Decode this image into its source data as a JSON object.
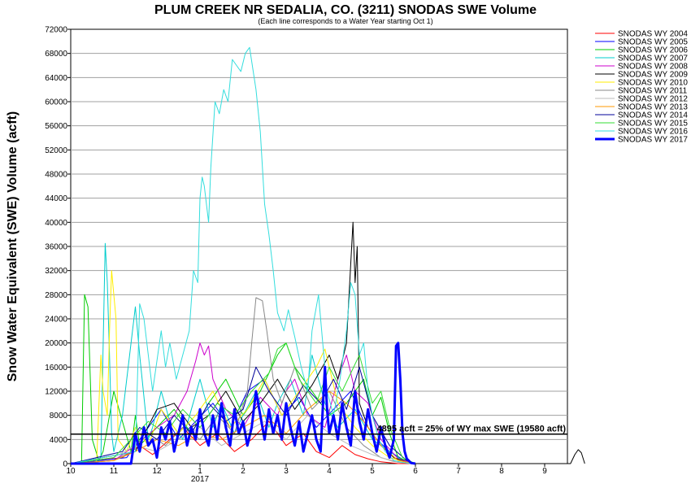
{
  "chart_data": {
    "type": "line",
    "title": "PLUM CREEK NR SEDALIA, CO. (3211) SNODAS SWE Volume",
    "subtitle": "(Each line corresponds to a Water Year starting Oct 1)",
    "ylabel": "Snow Water Equivalent (SWE) Volume (acft)",
    "xlabel": "",
    "ylim": [
      0,
      72000
    ],
    "yticks": [
      0,
      4000,
      8000,
      12000,
      16000,
      20000,
      24000,
      28000,
      32000,
      36000,
      40000,
      44000,
      48000,
      52000,
      56000,
      60000,
      64000,
      68000,
      72000
    ],
    "ytick_labels": [
      "0",
      "4000",
      "8000",
      "12000",
      "16000",
      "20000",
      "24000",
      "28000",
      "32000",
      "36000",
      "40000",
      "44000",
      "48000",
      "52000",
      "56000",
      "60000",
      "64000",
      "68000",
      "72000"
    ],
    "xlim": [
      10,
      9.93
    ],
    "xticks": [
      {
        "month": 10,
        "label": "10"
      },
      {
        "month": 11,
        "label": "11"
      },
      {
        "month": 12,
        "label": "12"
      },
      {
        "month": 13,
        "label": "1"
      },
      {
        "month": 14,
        "label": "2"
      },
      {
        "month": 15,
        "label": "3"
      },
      {
        "month": 16,
        "label": "4"
      },
      {
        "month": 17,
        "label": "5"
      },
      {
        "month": 18,
        "label": "6"
      },
      {
        "month": 19,
        "label": "7"
      },
      {
        "month": 20,
        "label": "8"
      },
      {
        "month": 21,
        "label": "9"
      }
    ],
    "year_label": "2017",
    "grid": "horizontal",
    "legend_placement": "right",
    "reference_line": {
      "value": 4895,
      "label": "4895 acft = 25% of WY max SWE (19580 acft)"
    },
    "series": [
      {
        "name": "SNODAS WY 2004",
        "color": "#ff0000",
        "width": 1,
        "x": [
          10.0,
          11.2,
          11.6,
          11.9,
          12.3,
          12.6,
          13.0,
          13.4,
          13.8,
          14.2,
          14.6,
          15.0,
          15.4,
          15.7,
          16.0,
          16.3,
          16.6,
          16.9,
          17.2,
          17.6,
          18.0
        ],
        "y": [
          0,
          1000,
          3000,
          1500,
          4000,
          6000,
          3000,
          5000,
          2000,
          4000,
          7000,
          3000,
          5000,
          2000,
          1000,
          3000,
          1500,
          800,
          300,
          0,
          0
        ]
      },
      {
        "name": "SNODAS WY 2005",
        "color": "#0000ff",
        "width": 1,
        "x": [
          10.0,
          11.3,
          11.7,
          12.1,
          12.5,
          12.9,
          13.3,
          13.7,
          14.1,
          14.5,
          14.9,
          15.3,
          15.7,
          16.1,
          16.5,
          16.8,
          17.1,
          17.4,
          17.8,
          18.0
        ],
        "y": [
          0,
          1000,
          5000,
          9000,
          4000,
          7000,
          10000,
          6000,
          12000,
          14000,
          8000,
          11000,
          6000,
          9000,
          12000,
          7000,
          4000,
          2000,
          300,
          0
        ]
      },
      {
        "name": "SNODAS WY 2006",
        "color": "#00cc00",
        "width": 1,
        "x": [
          10.0,
          10.25,
          10.32,
          10.4,
          10.5,
          10.65,
          10.75,
          11.0,
          11.4,
          11.5,
          11.6,
          12.0,
          12.4,
          12.8,
          13.2,
          13.6,
          14.0,
          14.4,
          14.8,
          15.0,
          15.2,
          15.6,
          16.0,
          16.4,
          16.8,
          17.0,
          17.2,
          17.4,
          17.6,
          18.0
        ],
        "y": [
          0,
          0,
          28000,
          26000,
          4000,
          500,
          2000,
          12000,
          2000,
          8000,
          3000,
          6000,
          9000,
          5000,
          10000,
          14000,
          8000,
          12000,
          18000,
          20000,
          16000,
          12000,
          8000,
          10000,
          14000,
          8000,
          11000,
          5000,
          1000,
          0
        ]
      },
      {
        "name": "SNODAS WY 2007",
        "color": "#00cccc",
        "width": 1,
        "x": [
          10.0,
          10.5,
          10.7,
          10.8,
          10.85,
          10.9,
          10.95,
          11.0,
          11.2,
          11.5,
          11.6,
          11.8,
          11.9,
          12.1,
          12.3,
          12.6,
          12.8,
          13.0,
          13.3,
          13.5,
          13.8,
          14.0,
          14.3,
          14.6,
          14.8,
          15.1,
          15.4,
          15.6,
          15.9,
          16.2,
          16.6,
          17.0,
          17.4,
          17.7,
          18.0
        ],
        "y": [
          0,
          0,
          1000,
          36500,
          30000,
          18000,
          5000,
          2000,
          8000,
          26000,
          18000,
          4000,
          6000,
          12000,
          7000,
          4000,
          9000,
          14000,
          6000,
          10000,
          5000,
          8000,
          12000,
          6000,
          10000,
          14000,
          8000,
          18000,
          10000,
          6000,
          9000,
          4000,
          2000,
          500,
          0
        ]
      },
      {
        "name": "SNODAS WY 2008",
        "color": "#cc00cc",
        "width": 1,
        "x": [
          10.0,
          11.0,
          11.5,
          12.0,
          12.4,
          12.7,
          12.9,
          13.0,
          13.1,
          13.2,
          13.3,
          13.6,
          14.0,
          14.4,
          14.8,
          15.0,
          15.2,
          15.5,
          15.9,
          16.2,
          16.4,
          16.6,
          16.9,
          17.2,
          17.6,
          18.0
        ],
        "y": [
          0,
          500,
          3000,
          6000,
          8000,
          12000,
          17000,
          20000,
          18000,
          19500,
          14000,
          9000,
          6000,
          11000,
          8000,
          12000,
          14000,
          8000,
          6000,
          14000,
          18000,
          12000,
          10000,
          4000,
          800,
          0
        ]
      },
      {
        "name": "SNODAS WY 2009",
        "color": "#000000",
        "width": 1,
        "x": [
          10.0,
          11.5,
          12.0,
          12.4,
          12.8,
          13.2,
          13.6,
          14.0,
          14.4,
          14.8,
          15.2,
          15.6,
          16.0,
          16.2,
          16.4,
          16.55,
          16.6,
          16.65,
          16.7,
          16.9,
          17.2,
          17.5,
          17.8,
          18.0,
          21.6,
          21.7,
          21.78,
          21.85,
          21.93
        ],
        "y": [
          0,
          2000,
          9000,
          10000,
          6000,
          8000,
          12000,
          7000,
          10000,
          14000,
          9000,
          13000,
          18000,
          14000,
          20000,
          40000,
          30000,
          36000,
          10000,
          6000,
          3000,
          1000,
          200,
          0,
          0,
          1500,
          2300,
          1800,
          0
        ]
      },
      {
        "name": "SNODAS WY 2010",
        "color": "#ffee00",
        "width": 1,
        "x": [
          10.0,
          10.6,
          10.7,
          10.75,
          10.85,
          10.9,
          10.95,
          11.05,
          11.1,
          11.3,
          11.5,
          11.8,
          12.1,
          12.5,
          12.9,
          13.3,
          13.7,
          14.1,
          14.5,
          14.9,
          15.3,
          15.7,
          15.9,
          16.2,
          16.6,
          17.0,
          17.4,
          17.8,
          18.0
        ],
        "y": [
          0,
          0,
          18000,
          12000,
          8000,
          22000,
          32000,
          24000,
          4000,
          2000,
          6000,
          3000,
          9000,
          5000,
          8000,
          12000,
          6000,
          9000,
          14000,
          8000,
          12000,
          16000,
          19000,
          10000,
          6000,
          3000,
          1000,
          200,
          0
        ]
      },
      {
        "name": "SNODAS WY 2011",
        "color": "#888888",
        "width": 1,
        "x": [
          10.0,
          11.0,
          11.4,
          11.8,
          12.2,
          12.6,
          13.0,
          13.4,
          13.8,
          14.1,
          14.2,
          14.3,
          14.45,
          14.55,
          14.7,
          14.9,
          15.2,
          15.6,
          16.0,
          16.4,
          16.8,
          17.2,
          17.6,
          18.0
        ],
        "y": [
          0,
          500,
          2000,
          5000,
          3000,
          6000,
          4000,
          8000,
          5000,
          12000,
          20000,
          27500,
          27000,
          22000,
          14000,
          10000,
          16000,
          9000,
          12000,
          6000,
          3000,
          1000,
          200,
          0
        ]
      },
      {
        "name": "SNODAS WY 2012",
        "color": "#bbbbbb",
        "width": 1,
        "x": [
          10.0,
          11.0,
          11.5,
          12.0,
          12.5,
          13.0,
          13.5,
          14.0,
          14.5,
          15.0,
          15.5,
          16.0,
          16.5,
          17.0,
          17.5,
          18.0
        ],
        "y": [
          0,
          1000,
          3000,
          2000,
          4000,
          6000,
          3000,
          5000,
          7000,
          4000,
          8000,
          5000,
          3000,
          1500,
          300,
          0
        ]
      },
      {
        "name": "SNODAS WY 2013",
        "color": "#ff9900",
        "width": 1,
        "x": [
          10.0,
          11.0,
          11.5,
          12.0,
          12.5,
          13.0,
          13.5,
          14.0,
          14.5,
          15.0,
          15.5,
          16.0,
          16.4,
          16.8,
          17.2,
          17.6,
          18.0
        ],
        "y": [
          0,
          500,
          2000,
          4000,
          3000,
          5000,
          4000,
          6000,
          8000,
          5000,
          9000,
          12000,
          10000,
          7000,
          3000,
          500,
          0
        ]
      },
      {
        "name": "SNODAS WY 2014",
        "color": "#000099",
        "width": 1,
        "x": [
          10.0,
          11.2,
          11.6,
          12.0,
          12.4,
          12.8,
          13.2,
          13.6,
          14.0,
          14.3,
          14.6,
          15.0,
          15.4,
          15.8,
          16.1,
          16.4,
          16.7,
          17.0,
          17.4,
          17.8,
          18.0
        ],
        "y": [
          0,
          2000,
          6000,
          4000,
          8000,
          5000,
          10000,
          7000,
          9000,
          16000,
          12000,
          8000,
          13000,
          10000,
          14000,
          9000,
          16000,
          8000,
          3000,
          500,
          0
        ]
      },
      {
        "name": "SNODAS WY 2015",
        "color": "#33dd33",
        "width": 1,
        "x": [
          10.0,
          11.0,
          11.4,
          11.8,
          12.2,
          12.6,
          13.0,
          13.4,
          13.8,
          14.2,
          14.6,
          14.8,
          15.0,
          15.3,
          15.7,
          16.0,
          16.3,
          16.7,
          17.0,
          17.2,
          17.4,
          17.7,
          18.0
        ],
        "y": [
          0,
          1000,
          4000,
          7000,
          5000,
          9000,
          6000,
          10000,
          8000,
          12000,
          15000,
          19000,
          20000,
          14000,
          10000,
          16000,
          12000,
          18000,
          10000,
          12000,
          6000,
          1000,
          0
        ]
      },
      {
        "name": "SNODAS WY 2016",
        "color": "#33dddd",
        "width": 1,
        "x": [
          10.0,
          11.5,
          11.6,
          11.7,
          11.8,
          11.9,
          12.0,
          12.1,
          12.2,
          12.3,
          12.45,
          12.6,
          12.75,
          12.85,
          12.95,
          13.0,
          13.05,
          13.1,
          13.2,
          13.25,
          13.35,
          13.45,
          13.55,
          13.65,
          13.75,
          13.85,
          13.95,
          14.05,
          14.15,
          14.3,
          14.4,
          14.5,
          14.6,
          14.7,
          14.8,
          14.95,
          15.05,
          15.2,
          15.35,
          15.5,
          15.6,
          15.75,
          15.85,
          15.95,
          16.1,
          16.25,
          16.4,
          16.5,
          16.6,
          16.7,
          16.8,
          16.9,
          17.0,
          17.15,
          17.3,
          17.5,
          17.7,
          17.9
        ],
        "y": [
          0,
          2000,
          26500,
          24000,
          18000,
          12000,
          17000,
          22000,
          16000,
          20000,
          14000,
          18000,
          22000,
          32000,
          30000,
          44000,
          47500,
          46000,
          40000,
          49000,
          60000,
          58000,
          62000,
          60000,
          67000,
          66000,
          65000,
          68000,
          69000,
          62000,
          55000,
          43000,
          38000,
          32000,
          25000,
          22000,
          25500,
          21000,
          16000,
          12000,
          22000,
          28000,
          20000,
          12000,
          8000,
          14000,
          22000,
          30000,
          28000,
          18000,
          20000,
          12000,
          8000,
          4000,
          2000,
          500,
          200,
          0
        ]
      },
      {
        "name": "SNODAS WY 2017",
        "color": "#0000ff",
        "width": 3,
        "x": [
          10.0,
          11.4,
          11.5,
          11.6,
          11.7,
          11.8,
          11.9,
          12.0,
          12.1,
          12.2,
          12.3,
          12.4,
          12.5,
          12.6,
          12.7,
          12.8,
          12.9,
          13.0,
          13.1,
          13.2,
          13.3,
          13.4,
          13.5,
          13.6,
          13.7,
          13.8,
          13.9,
          14.0,
          14.1,
          14.2,
          14.3,
          14.4,
          14.5,
          14.6,
          14.7,
          14.8,
          14.9,
          15.0,
          15.1,
          15.2,
          15.3,
          15.4,
          15.5,
          15.6,
          15.7,
          15.8,
          15.85,
          15.9,
          15.95,
          16.0,
          16.1,
          16.2,
          16.3,
          16.4,
          16.5,
          16.6,
          16.7,
          16.8,
          16.9,
          17.0,
          17.1,
          17.2,
          17.3,
          17.4,
          17.5,
          17.55,
          17.6,
          17.65,
          17.7,
          17.75,
          17.8,
          17.9,
          18.0
        ],
        "y": [
          0,
          0,
          5000,
          2000,
          6000,
          3000,
          4000,
          1000,
          6000,
          4000,
          7000,
          2000,
          5000,
          8000,
          3000,
          6000,
          4000,
          9000,
          5000,
          3000,
          8000,
          4000,
          10000,
          6000,
          3000,
          9000,
          5000,
          7000,
          3000,
          6000,
          12000,
          8000,
          4000,
          9000,
          5000,
          8000,
          4000,
          10000,
          6000,
          3000,
          7000,
          2000,
          5000,
          8000,
          4000,
          2000,
          9000,
          16000,
          9000,
          5000,
          8000,
          4000,
          10000,
          6000,
          3000,
          12000,
          7000,
          4000,
          9000,
          5000,
          2000,
          6000,
          3000,
          1000,
          4000,
          19500,
          20000,
          14000,
          5000,
          2000,
          800,
          100,
          0
        ]
      }
    ]
  }
}
